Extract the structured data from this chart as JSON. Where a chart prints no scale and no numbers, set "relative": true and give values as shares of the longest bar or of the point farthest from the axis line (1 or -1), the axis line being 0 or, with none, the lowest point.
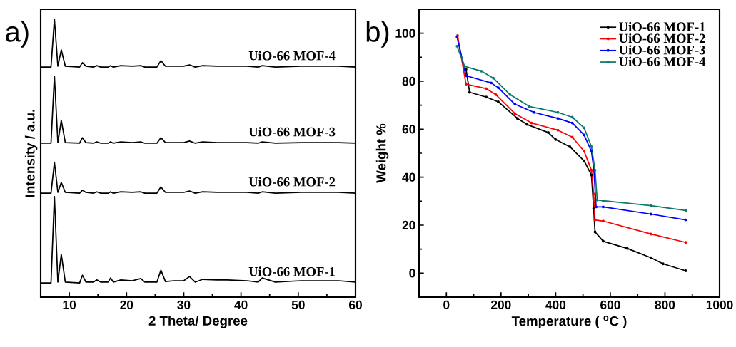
{
  "chart_data": [
    {
      "type": "line",
      "title": "a)",
      "xlabel": "2 Theta/ Degree",
      "ylabel": "Intensity / a.u.",
      "relative": true,
      "legend": false,
      "xlim": [
        5,
        60
      ],
      "xticks": [
        10,
        20,
        30,
        40,
        50,
        60
      ],
      "x": [
        5,
        6.8,
        7.4,
        8.0,
        8.6,
        9.3,
        11.8,
        12.3,
        12.9,
        14.2,
        14.8,
        15.5,
        16.8,
        17.2,
        17.7,
        19,
        21,
        22.5,
        23.2,
        25.3,
        26,
        26.8,
        28.3,
        30,
        31,
        32,
        33.3,
        35.8,
        37.6,
        41,
        43,
        43.7,
        46,
        50.5,
        57,
        60
      ],
      "series": [
        {
          "name": "UiO-66 MOF-1",
          "color": "#000000",
          "values": [
            0.051,
            0.051,
            0.362,
            0.054,
            0.154,
            0.054,
            0.051,
            0.079,
            0.054,
            0.054,
            0.062,
            0.054,
            0.054,
            0.069,
            0.054,
            0.062,
            0.059,
            0.067,
            0.054,
            0.054,
            0.097,
            0.056,
            0.059,
            0.059,
            0.074,
            0.054,
            0.064,
            0.062,
            0.062,
            0.059,
            0.054,
            0.069,
            0.054,
            0.059,
            0.059,
            0.054
          ]
        },
        {
          "name": "UiO-66 MOF-2",
          "color": "#000000",
          "values": [
            0.374,
            0.374,
            0.485,
            0.377,
            0.413,
            0.377,
            0.374,
            0.385,
            0.377,
            0.374,
            0.379,
            0.374,
            0.374,
            0.379,
            0.374,
            0.379,
            0.377,
            0.379,
            0.374,
            0.374,
            0.397,
            0.377,
            0.377,
            0.377,
            0.382,
            0.374,
            0.379,
            0.377,
            0.377,
            0.377,
            0.374,
            0.379,
            0.374,
            0.377,
            0.377,
            0.374
          ]
        },
        {
          "name": "UiO-66 MOF-3",
          "color": "#000000",
          "values": [
            0.554,
            0.554,
            0.795,
            0.556,
            0.636,
            0.556,
            0.554,
            0.574,
            0.556,
            0.554,
            0.559,
            0.554,
            0.554,
            0.559,
            0.554,
            0.559,
            0.556,
            0.559,
            0.554,
            0.554,
            0.574,
            0.556,
            0.556,
            0.556,
            0.562,
            0.554,
            0.559,
            0.556,
            0.556,
            0.556,
            0.554,
            0.559,
            0.554,
            0.556,
            0.556,
            0.554
          ]
        },
        {
          "name": "UiO-66 MOF-4",
          "color": "#000000",
          "values": [
            0.828,
            0.828,
            1,
            0.831,
            0.89,
            0.831,
            0.828,
            0.844,
            0.831,
            0.828,
            0.833,
            0.828,
            0.828,
            0.833,
            0.828,
            0.833,
            0.831,
            0.833,
            0.828,
            0.828,
            0.851,
            0.831,
            0.831,
            0.831,
            0.836,
            0.828,
            0.833,
            0.831,
            0.831,
            0.831,
            0.828,
            0.833,
            0.828,
            0.831,
            0.831,
            0.828
          ]
        }
      ]
    },
    {
      "type": "line",
      "title": "b)",
      "xlabel": "Temperature ( $^{o}$C )",
      "ylabel": "Weight %",
      "legend": "top right",
      "marker": "circle",
      "xlim": [
        -100,
        1000
      ],
      "xticks": [
        0,
        200,
        400,
        600,
        800,
        1000
      ],
      "ylim": [
        -10,
        110
      ],
      "yticks": [
        0,
        20,
        40,
        60,
        80,
        100
      ],
      "series": [
        {
          "name": "UiO-66 MOF-1",
          "color": "#000000",
          "x": [
            72,
            85,
            146,
            190,
            260,
            295,
            373,
            400,
            452,
            504,
            531,
            539,
            544,
            574,
            662,
            749,
            793,
            876
          ],
          "values": [
            85,
            75.4,
            73.4,
            71.4,
            64.5,
            62,
            58.6,
            55.7,
            52.7,
            46.8,
            40.9,
            27,
            17.2,
            13.3,
            10.3,
            6.4,
            3.9,
            1
          ]
        },
        {
          "name": "UiO-66 MOF-2",
          "color": "#ff0000",
          "x": [
            41,
            72,
            146,
            181,
            251,
            312,
            408,
            461,
            504,
            531,
            539,
            544,
            574,
            749,
            876
          ],
          "values": [
            99,
            78.8,
            76.9,
            74.4,
            66.5,
            62.6,
            59.6,
            56.7,
            50.8,
            42.9,
            33,
            22.2,
            21.7,
            16.3,
            12.8
          ]
        },
        {
          "name": "UiO-66 MOF-3",
          "color": "#0000ff",
          "x": [
            39,
            72,
            164,
            190,
            251,
            321,
            408,
            461,
            504,
            531,
            540,
            548,
            574,
            749,
            876
          ],
          "values": [
            98.5,
            82.3,
            79.3,
            77.3,
            70.4,
            67,
            64.5,
            62.6,
            57.6,
            50.8,
            42.9,
            27.6,
            27.6,
            24.6,
            22.2
          ]
        },
        {
          "name": "UiO-66 MOF-4",
          "color": "#0b7a6a",
          "x": [
            39,
            67,
            128,
            172,
            233,
            303,
            408,
            461,
            504,
            531,
            544,
            552,
            574,
            749,
            876
          ],
          "values": [
            94.6,
            86.2,
            84.2,
            81.3,
            74.4,
            69.5,
            67,
            65,
            60.6,
            52.7,
            42.9,
            30.5,
            30.2,
            28.1,
            26.1
          ]
        }
      ]
    }
  ]
}
